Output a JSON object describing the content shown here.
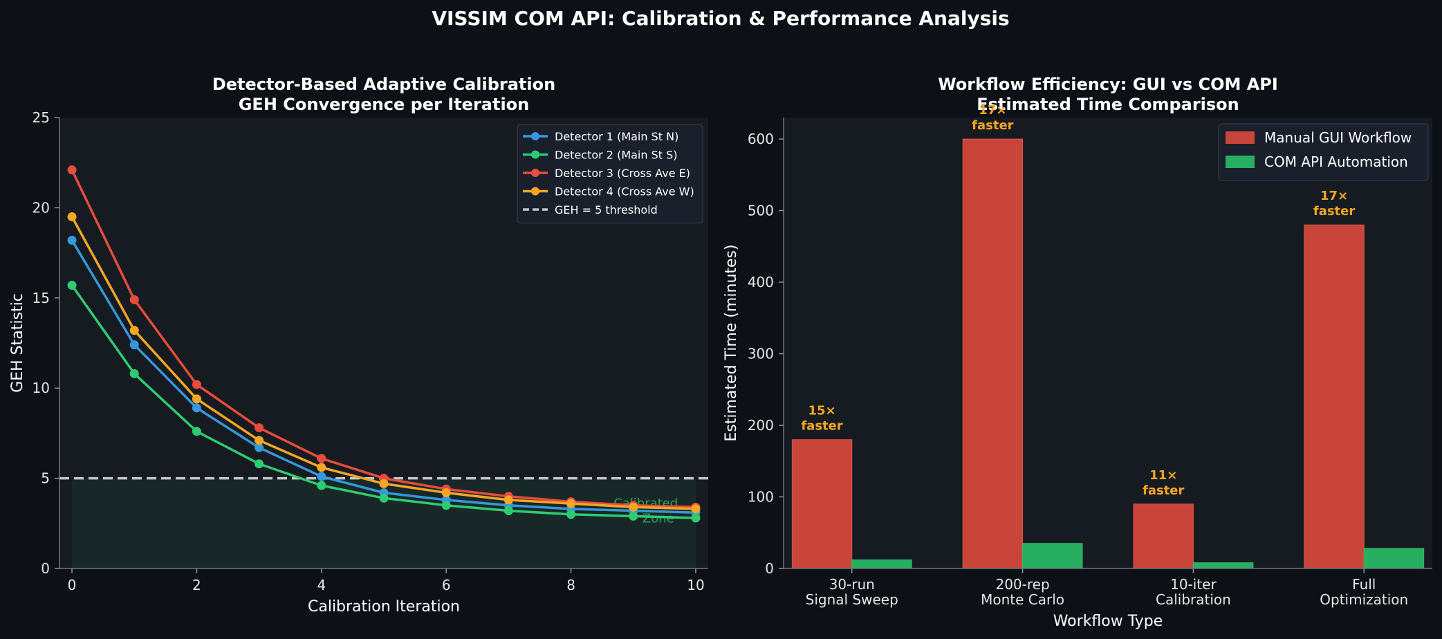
{
  "suptitle": "VISSIM COM API: Calibration & Performance Analysis",
  "chart_data": [
    {
      "type": "line",
      "title": [
        "Detector-Based Adaptive Calibration",
        "GEH Convergence per Iteration"
      ],
      "xlabel": "Calibration Iteration",
      "ylabel": "GEH Statistic",
      "xlim": [
        -0.2,
        10.2
      ],
      "ylim": [
        0,
        25
      ],
      "xticks": [
        0,
        2,
        4,
        6,
        8,
        10
      ],
      "yticks": [
        0,
        5,
        10,
        15,
        20,
        25
      ],
      "x": [
        0,
        1,
        2,
        3,
        4,
        5,
        6,
        7,
        8,
        9,
        10
      ],
      "legend_position": "top-right",
      "series": [
        {
          "name": "Detector 1 (Main St N)",
          "color": "#3498db",
          "values": [
            18.2,
            12.4,
            8.9,
            6.7,
            5.1,
            4.2,
            3.8,
            3.5,
            3.3,
            3.2,
            3.1
          ]
        },
        {
          "name": "Detector 2 (Main St S)",
          "color": "#2ecc71",
          "values": [
            15.7,
            10.8,
            7.6,
            5.8,
            4.6,
            3.9,
            3.5,
            3.2,
            3.0,
            2.9,
            2.8
          ]
        },
        {
          "name": "Detector 3 (Cross Ave E)",
          "color": "#e74c3c",
          "values": [
            22.1,
            14.9,
            10.2,
            7.8,
            6.1,
            5.0,
            4.4,
            4.0,
            3.7,
            3.5,
            3.4
          ]
        },
        {
          "name": "Detector 4 (Cross Ave W)",
          "color": "#f5a623",
          "values": [
            19.5,
            13.2,
            9.4,
            7.1,
            5.6,
            4.7,
            4.2,
            3.8,
            3.6,
            3.4,
            3.3
          ]
        }
      ],
      "threshold": {
        "name": "GEH = 5 threshold",
        "value": 5,
        "color": "#c8c8c8"
      },
      "zone_label": [
        "Calibrated",
        "Zone"
      ]
    },
    {
      "type": "bar",
      "title": [
        "Workflow Efficiency: GUI vs COM API",
        "Estimated Time Comparison"
      ],
      "xlabel": "Workflow Type",
      "ylabel": "Estimated Time (minutes)",
      "ylim": [
        0,
        630
      ],
      "yticks": [
        0,
        100,
        200,
        300,
        400,
        500,
        600
      ],
      "categories": [
        [
          "30-run",
          "Signal Sweep"
        ],
        [
          "200-rep",
          "Monte Carlo"
        ],
        [
          "10-iter",
          "Calibration"
        ],
        [
          "Full",
          "Optimization"
        ]
      ],
      "legend_position": "top-right",
      "series": [
        {
          "name": "Manual GUI Workflow",
          "color": "#c9453a",
          "values": [
            180,
            600,
            90,
            480
          ]
        },
        {
          "name": "COM API Automation",
          "color": "#27ae60",
          "values": [
            12,
            35,
            8,
            28
          ]
        }
      ],
      "annotations": [
        [
          "15×",
          "faster"
        ],
        [
          "17×",
          "faster"
        ],
        [
          "11×",
          "faster"
        ],
        [
          "17×",
          "faster"
        ]
      ]
    }
  ]
}
